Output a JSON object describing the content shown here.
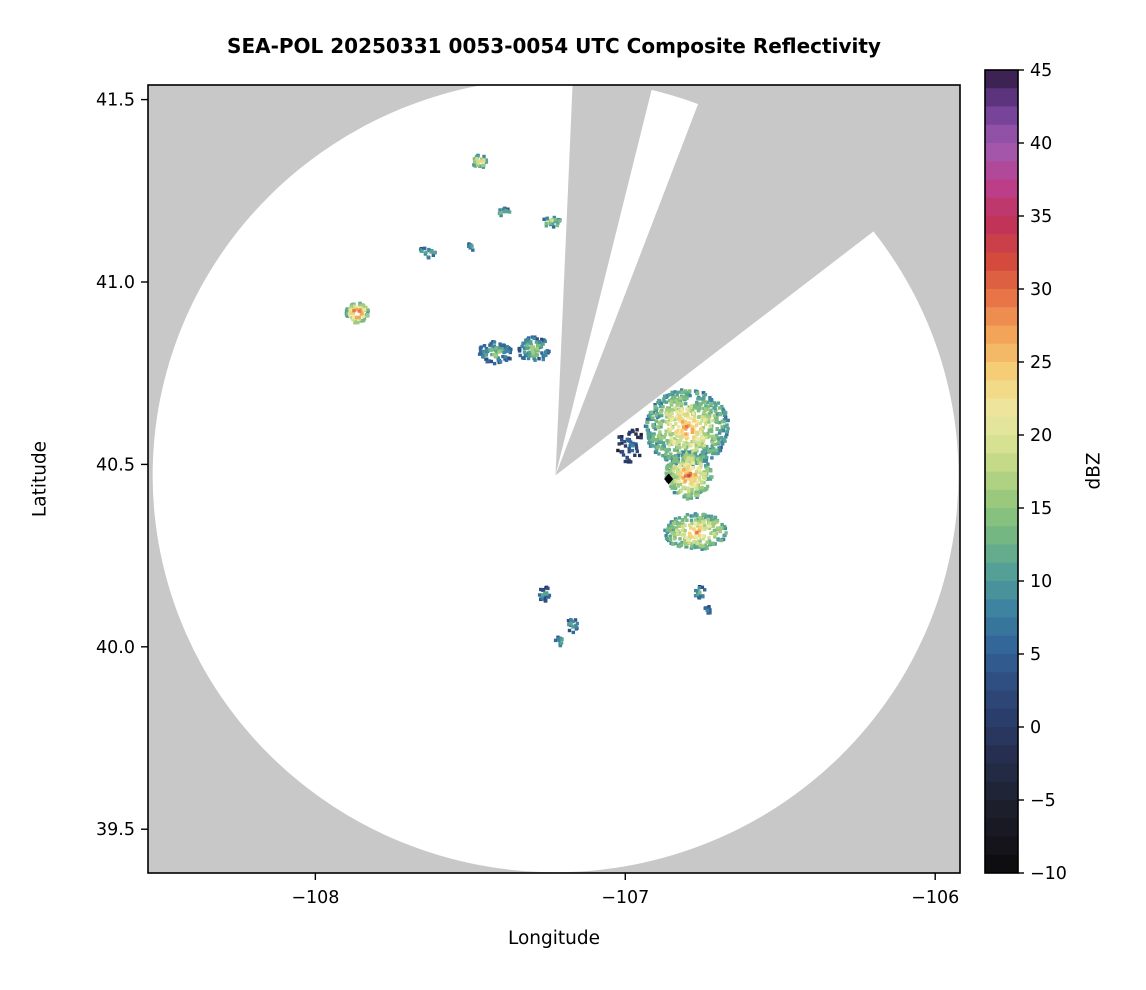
{
  "chart_data": {
    "type": "heatmap",
    "title": "SEA-POL 20250331 0053-0054 UTC Composite Reflectivity",
    "xlabel": "Longitude",
    "ylabel": "Latitude",
    "xlim": [
      -108.54,
      -105.92
    ],
    "ylim": [
      39.38,
      41.54
    ],
    "x_ticks": {
      "values": [
        -108,
        -107,
        -106
      ],
      "labels": [
        "−108",
        "−107",
        "−106"
      ]
    },
    "y_ticks": {
      "values": [
        41.5,
        41.0,
        40.5,
        40.0,
        39.5
      ],
      "labels": [
        "41.5",
        "41.0",
        "40.5",
        "40.0",
        "39.5"
      ]
    },
    "colorbar": {
      "label": "dBZ",
      "min": -10,
      "max": 45,
      "step": 2.5,
      "tick_values": [
        45,
        40,
        35,
        30,
        25,
        20,
        15,
        10,
        5,
        0,
        -5,
        -10
      ],
      "tick_labels": [
        "45",
        "40",
        "35",
        "30",
        "25",
        "20",
        "15",
        "10",
        "5",
        "0",
        "−5",
        "−10"
      ],
      "colors": [
        "#0b0b0d",
        "#17171f",
        "#1f2233",
        "#262e4d",
        "#2b3c68",
        "#2f4f83",
        "#33689a",
        "#3f86a0",
        "#57a494",
        "#7bbb80",
        "#a3cd7e",
        "#cfdf8d",
        "#eee8a2",
        "#f4d27a",
        "#f3a95b",
        "#e97747",
        "#d44a3e",
        "#c03358",
        "#bb3f8d",
        "#a05ab0",
        "#6e3f95",
        "#2e1a40"
      ]
    },
    "radar": {
      "name": "SEA-POL",
      "center_lon": -107.225,
      "center_lat": 40.47,
      "range_deg_lon": 1.3,
      "range_deg_lat": 1.088,
      "background_color": "#c8c8c8",
      "coverage_color": "#ffffff",
      "blocked_sectors_azimuth_deg": [
        {
          "az_start": 2.5,
          "az_end": 14.0
        },
        {
          "az_start": 21.0,
          "az_end": 52.5
        }
      ]
    },
    "site_marker": {
      "lon": -106.86,
      "lat": 40.46,
      "symbol": "diamond",
      "color": "#000000"
    },
    "echo_patches": [
      {
        "name": "north-cell",
        "lon": -107.468,
        "lat": 41.33,
        "rx": 0.025,
        "ry": 0.018,
        "n": 30,
        "base": 10,
        "peak": 23,
        "seed": 11
      },
      {
        "name": "north-speck-1",
        "lon": -107.39,
        "lat": 41.19,
        "rx": 0.02,
        "ry": 0.012,
        "n": 12,
        "base": 8,
        "peak": 15,
        "seed": 12
      },
      {
        "name": "north-speck-2",
        "lon": -107.235,
        "lat": 41.165,
        "rx": 0.038,
        "ry": 0.014,
        "n": 22,
        "base": 9,
        "peak": 18,
        "seed": 13
      },
      {
        "name": "north-speck-3",
        "lon": -107.64,
        "lat": 41.08,
        "rx": 0.03,
        "ry": 0.016,
        "n": 18,
        "base": 6,
        "peak": 13,
        "seed": 14
      },
      {
        "name": "north-speck-4",
        "lon": -107.5,
        "lat": 41.095,
        "rx": 0.013,
        "ry": 0.01,
        "n": 7,
        "base": 7,
        "peak": 12,
        "seed": 15
      },
      {
        "name": "west-cell",
        "lon": -107.865,
        "lat": 40.915,
        "rx": 0.036,
        "ry": 0.028,
        "n": 70,
        "base": 12,
        "peak": 33,
        "seed": 16
      },
      {
        "name": "west-cluster-a",
        "lon": -107.42,
        "lat": 40.805,
        "rx": 0.055,
        "ry": 0.032,
        "n": 80,
        "base": 4,
        "peak": 16,
        "seed": 17
      },
      {
        "name": "west-cluster-b",
        "lon": -107.295,
        "lat": 40.815,
        "rx": 0.05,
        "ry": 0.035,
        "n": 85,
        "base": 5,
        "peak": 17,
        "seed": 18
      },
      {
        "name": "main-north",
        "lon": -106.8,
        "lat": 40.6,
        "rx": 0.135,
        "ry": 0.105,
        "n": 650,
        "base": 9,
        "peak": 26,
        "seed": 19
      },
      {
        "name": "main-mid",
        "lon": -106.795,
        "lat": 40.47,
        "rx": 0.075,
        "ry": 0.065,
        "n": 280,
        "base": 11,
        "peak": 28,
        "seed": 20
      },
      {
        "name": "main-south",
        "lon": -106.77,
        "lat": 40.315,
        "rx": 0.105,
        "ry": 0.05,
        "n": 240,
        "base": 10,
        "peak": 26,
        "seed": 21
      },
      {
        "name": "main-west-specks",
        "lon": -106.98,
        "lat": 40.55,
        "rx": 0.045,
        "ry": 0.055,
        "n": 45,
        "base": -2,
        "peak": 9,
        "seed": 22
      },
      {
        "name": "south-speck-a",
        "lon": -107.26,
        "lat": 40.145,
        "rx": 0.022,
        "ry": 0.02,
        "n": 22,
        "base": 2,
        "peak": 11,
        "seed": 23
      },
      {
        "name": "south-speck-b",
        "lon": -107.17,
        "lat": 40.06,
        "rx": 0.018,
        "ry": 0.022,
        "n": 20,
        "base": 4,
        "peak": 12,
        "seed": 24
      },
      {
        "name": "south-speck-c",
        "lon": -107.215,
        "lat": 40.015,
        "rx": 0.016,
        "ry": 0.013,
        "n": 12,
        "base": 6,
        "peak": 13,
        "seed": 25
      },
      {
        "name": "se-speck-a",
        "lon": -106.76,
        "lat": 40.15,
        "rx": 0.022,
        "ry": 0.016,
        "n": 16,
        "base": 5,
        "peak": 13,
        "seed": 26
      },
      {
        "name": "se-speck-b",
        "lon": -106.735,
        "lat": 40.1,
        "rx": 0.013,
        "ry": 0.012,
        "n": 9,
        "base": 4,
        "peak": 10,
        "seed": 27
      }
    ]
  }
}
